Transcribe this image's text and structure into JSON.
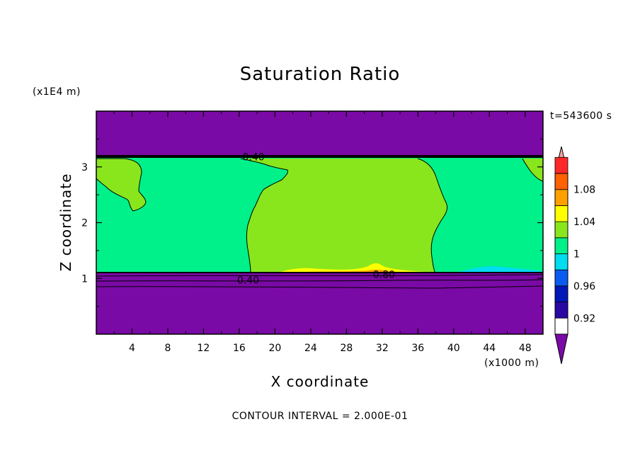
{
  "chart_data": {
    "type": "heatmap",
    "title": "Saturation Ratio",
    "xlabel": "X coordinate",
    "ylabel": "Z coordinate",
    "x_unit": "(x1000 m)",
    "y_unit": "(x1E4 m)",
    "time_label": "t=543600 s",
    "footer": "CONTOUR INTERVAL = 2.000E-01",
    "xlim": [
      0,
      50
    ],
    "ylim": [
      0,
      4
    ],
    "x_ticks": [
      {
        "value": 4,
        "label": "4"
      },
      {
        "value": 8,
        "label": "8"
      },
      {
        "value": 12,
        "label": "12"
      },
      {
        "value": 16,
        "label": "16"
      },
      {
        "value": 20,
        "label": "20"
      },
      {
        "value": 24,
        "label": "24"
      },
      {
        "value": 28,
        "label": "28"
      },
      {
        "value": 32,
        "label": "32"
      },
      {
        "value": 36,
        "label": "36"
      },
      {
        "value": 40,
        "label": "40"
      },
      {
        "value": 44,
        "label": "44"
      },
      {
        "value": 48,
        "label": "48"
      }
    ],
    "y_ticks": [
      {
        "value": 1,
        "label": "1"
      },
      {
        "value": 2,
        "label": "2"
      },
      {
        "value": 3,
        "label": "3"
      }
    ],
    "colorbar": {
      "levels": [
        {
          "label": "",
          "color": "#7a0aa5"
        },
        {
          "label": "0.92",
          "color": "#2a08a2"
        },
        {
          "label": "",
          "color": "#0018b8"
        },
        {
          "label": "0.96",
          "color": "#0a5cf0"
        },
        {
          "label": "",
          "color": "#00dcf0"
        },
        {
          "label": "1",
          "color": "#00f08a"
        },
        {
          "label": "",
          "color": "#8ae61c"
        },
        {
          "label": "1.04",
          "color": "#ffff00"
        },
        {
          "label": "",
          "color": "#ffa000"
        },
        {
          "label": "1.08",
          "color": "#ff6000"
        },
        {
          "label": "",
          "color": "#ff2828"
        },
        {
          "label": "",
          "color": "#f0a0a0"
        }
      ],
      "under_color": "#7a0aa5",
      "over_color": "#f0a0a0"
    },
    "contour_labels": [
      {
        "text": "0.40",
        "x": 17.6,
        "z": 3.18
      },
      {
        "text": "0.40",
        "x": 17.0,
        "z": 0.97
      },
      {
        "text": "0.80",
        "x": 32.2,
        "z": 1.07
      }
    ],
    "regions": {
      "dry_top_z": 3.17,
      "dry_bottom_z": 1.09,
      "background_color": "#7a0aa5",
      "saturated_color": "#00f08a",
      "supersaturated_color": "#8ae61c"
    }
  }
}
